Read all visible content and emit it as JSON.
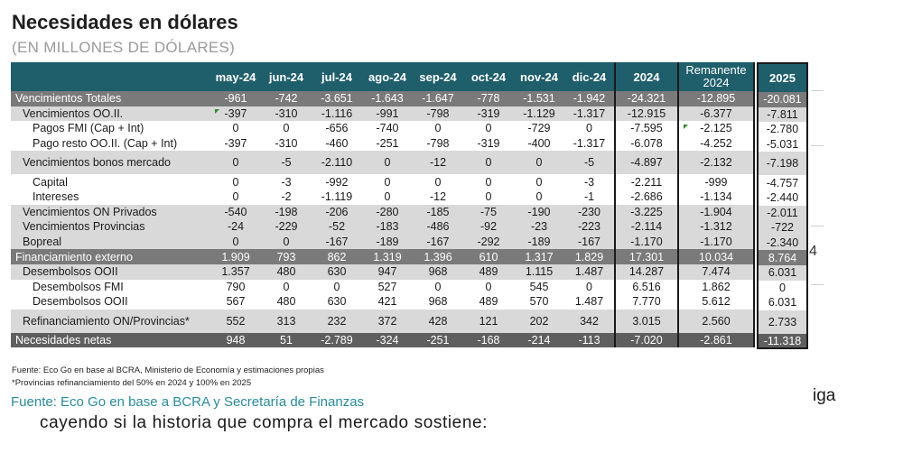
{
  "title": "Necesidades en dólares",
  "subtitle": "(EN MILLONES DE DÓLARES)",
  "columns": [
    "may-24",
    "jun-24",
    "jul-24",
    "ago-24",
    "sep-24",
    "oct-24",
    "nov-24",
    "dic-24",
    "2024",
    "Remanente 2024"
  ],
  "col_2025": "2025",
  "rows": [
    {
      "label": "Vencimientos Totales",
      "style": "dark",
      "indent": 0,
      "values": [
        "-961",
        "-742",
        "-3.651",
        "-1.643",
        "-1.647",
        "-778",
        "-1.531",
        "-1.942",
        "-24.321",
        "-12.895"
      ],
      "y2025": "-20.081"
    },
    {
      "label": "Vencimientos OO.II.",
      "style": "light",
      "indent": 1,
      "values": [
        "-397",
        "-310",
        "-1.116",
        "-991",
        "-798",
        "-319",
        "-1.129",
        "-1.317",
        "-12.915",
        "-6.377"
      ],
      "y2025": "-7.811"
    },
    {
      "label": "Pagos FMI (Cap + Int)",
      "style": "white",
      "indent": 2,
      "values": [
        "0",
        "0",
        "-656",
        "-740",
        "0",
        "0",
        "-729",
        "0",
        "-7.595",
        "-2.125"
      ],
      "y2025": "-2.780"
    },
    {
      "label": "Pago resto OO.II. (Cap + Int)",
      "style": "white",
      "indent": 2,
      "values": [
        "-397",
        "-310",
        "-460",
        "-251",
        "-798",
        "-319",
        "-400",
        "-1.317",
        "-6.078",
        "-4.252"
      ],
      "y2025": "-5.031"
    },
    {
      "label": "Vencimientos bonos mercado",
      "style": "light",
      "indent": 1,
      "tall": true,
      "values": [
        "0",
        "-5",
        "-2.110",
        "0",
        "-12",
        "0",
        "0",
        "-5",
        "-4.897",
        "-2.132"
      ],
      "y2025": "-7.198"
    },
    {
      "label": "Capital",
      "style": "white",
      "indent": 2,
      "values": [
        "0",
        "-3",
        "-992",
        "0",
        "0",
        "0",
        "0",
        "-3",
        "-2.211",
        "-999"
      ],
      "y2025": "-4.757"
    },
    {
      "label": "Intereses",
      "style": "white",
      "indent": 2,
      "values": [
        "0",
        "-2",
        "-1.119",
        "0",
        "-12",
        "0",
        "0",
        "-1",
        "-2.686",
        "-1.134"
      ],
      "y2025": "-2.440"
    },
    {
      "label": "Vencimientos ON Privados",
      "style": "light",
      "indent": 1,
      "values": [
        "-540",
        "-198",
        "-206",
        "-280",
        "-185",
        "-75",
        "-190",
        "-230",
        "-3.225",
        "-1.904"
      ],
      "y2025": "-2.011"
    },
    {
      "label": "Vencimientos Provincias",
      "style": "light",
      "indent": 1,
      "values": [
        "-24",
        "-229",
        "-52",
        "-183",
        "-486",
        "-92",
        "-23",
        "-223",
        "-2.114",
        "-1.312"
      ],
      "y2025": "-722"
    },
    {
      "label": "Bopreal",
      "style": "light",
      "indent": 1,
      "values": [
        "0",
        "0",
        "-167",
        "-189",
        "-167",
        "-292",
        "-189",
        "-167",
        "-1.170",
        "-1.170"
      ],
      "y2025": "-2.340"
    },
    {
      "label": "Financiamiento externo",
      "style": "dark",
      "indent": 0,
      "values": [
        "1.909",
        "793",
        "862",
        "1.319",
        "1.396",
        "610",
        "1.317",
        "1.829",
        "17.301",
        "10.034"
      ],
      "y2025": "8.764"
    },
    {
      "label": "Desembolsos OOII",
      "style": "light",
      "indent": 1,
      "values": [
        "1.357",
        "480",
        "630",
        "947",
        "968",
        "489",
        "1.115",
        "1.487",
        "14.287",
        "7.474"
      ],
      "y2025": "6.031"
    },
    {
      "label": "Desembolsos FMI",
      "style": "white",
      "indent": 2,
      "values": [
        "790",
        "0",
        "0",
        "527",
        "0",
        "0",
        "545",
        "0",
        "6.516",
        "1.862"
      ],
      "y2025": "0"
    },
    {
      "label": "Desembolsos OOII",
      "style": "white",
      "indent": 2,
      "values": [
        "567",
        "480",
        "630",
        "421",
        "968",
        "489",
        "570",
        "1.487",
        "7.770",
        "5.612"
      ],
      "y2025": "6.031"
    },
    {
      "label": "Refinanciamiento ON/Provincias*",
      "style": "light",
      "indent": 1,
      "tall": true,
      "values": [
        "552",
        "313",
        "232",
        "372",
        "428",
        "121",
        "202",
        "342",
        "3.015",
        "2.560"
      ],
      "y2025": "2.733"
    },
    {
      "label": "Necesidades netas",
      "style": "total",
      "indent": 0,
      "values": [
        "948",
        "51",
        "-2.789",
        "-324",
        "-251",
        "-168",
        "-214",
        "-113",
        "-7.020",
        "-2.861"
      ],
      "y2025": "-11.318"
    }
  ],
  "footnote1": "Fuente: Eco Go en base al BCRA, Ministerio de Economía y estimaciones propias",
  "footnote2": "*Provincias refinanciamiento del 50% en 2024 y 100% en 2025",
  "source": "Fuente: Eco Go en base a BCRA y Secretaría de Finanzas",
  "body_text": "cayendo si la historia que compra el mercado sostiene:",
  "side_text": "iga",
  "side_glyph": "4",
  "colors": {
    "header": "#1f5e6b",
    "dark_row": "#7a7a7a",
    "light_row": "#d9d9d9",
    "total_row": "#5f5f5f",
    "source_text": "#2a8a9a"
  }
}
